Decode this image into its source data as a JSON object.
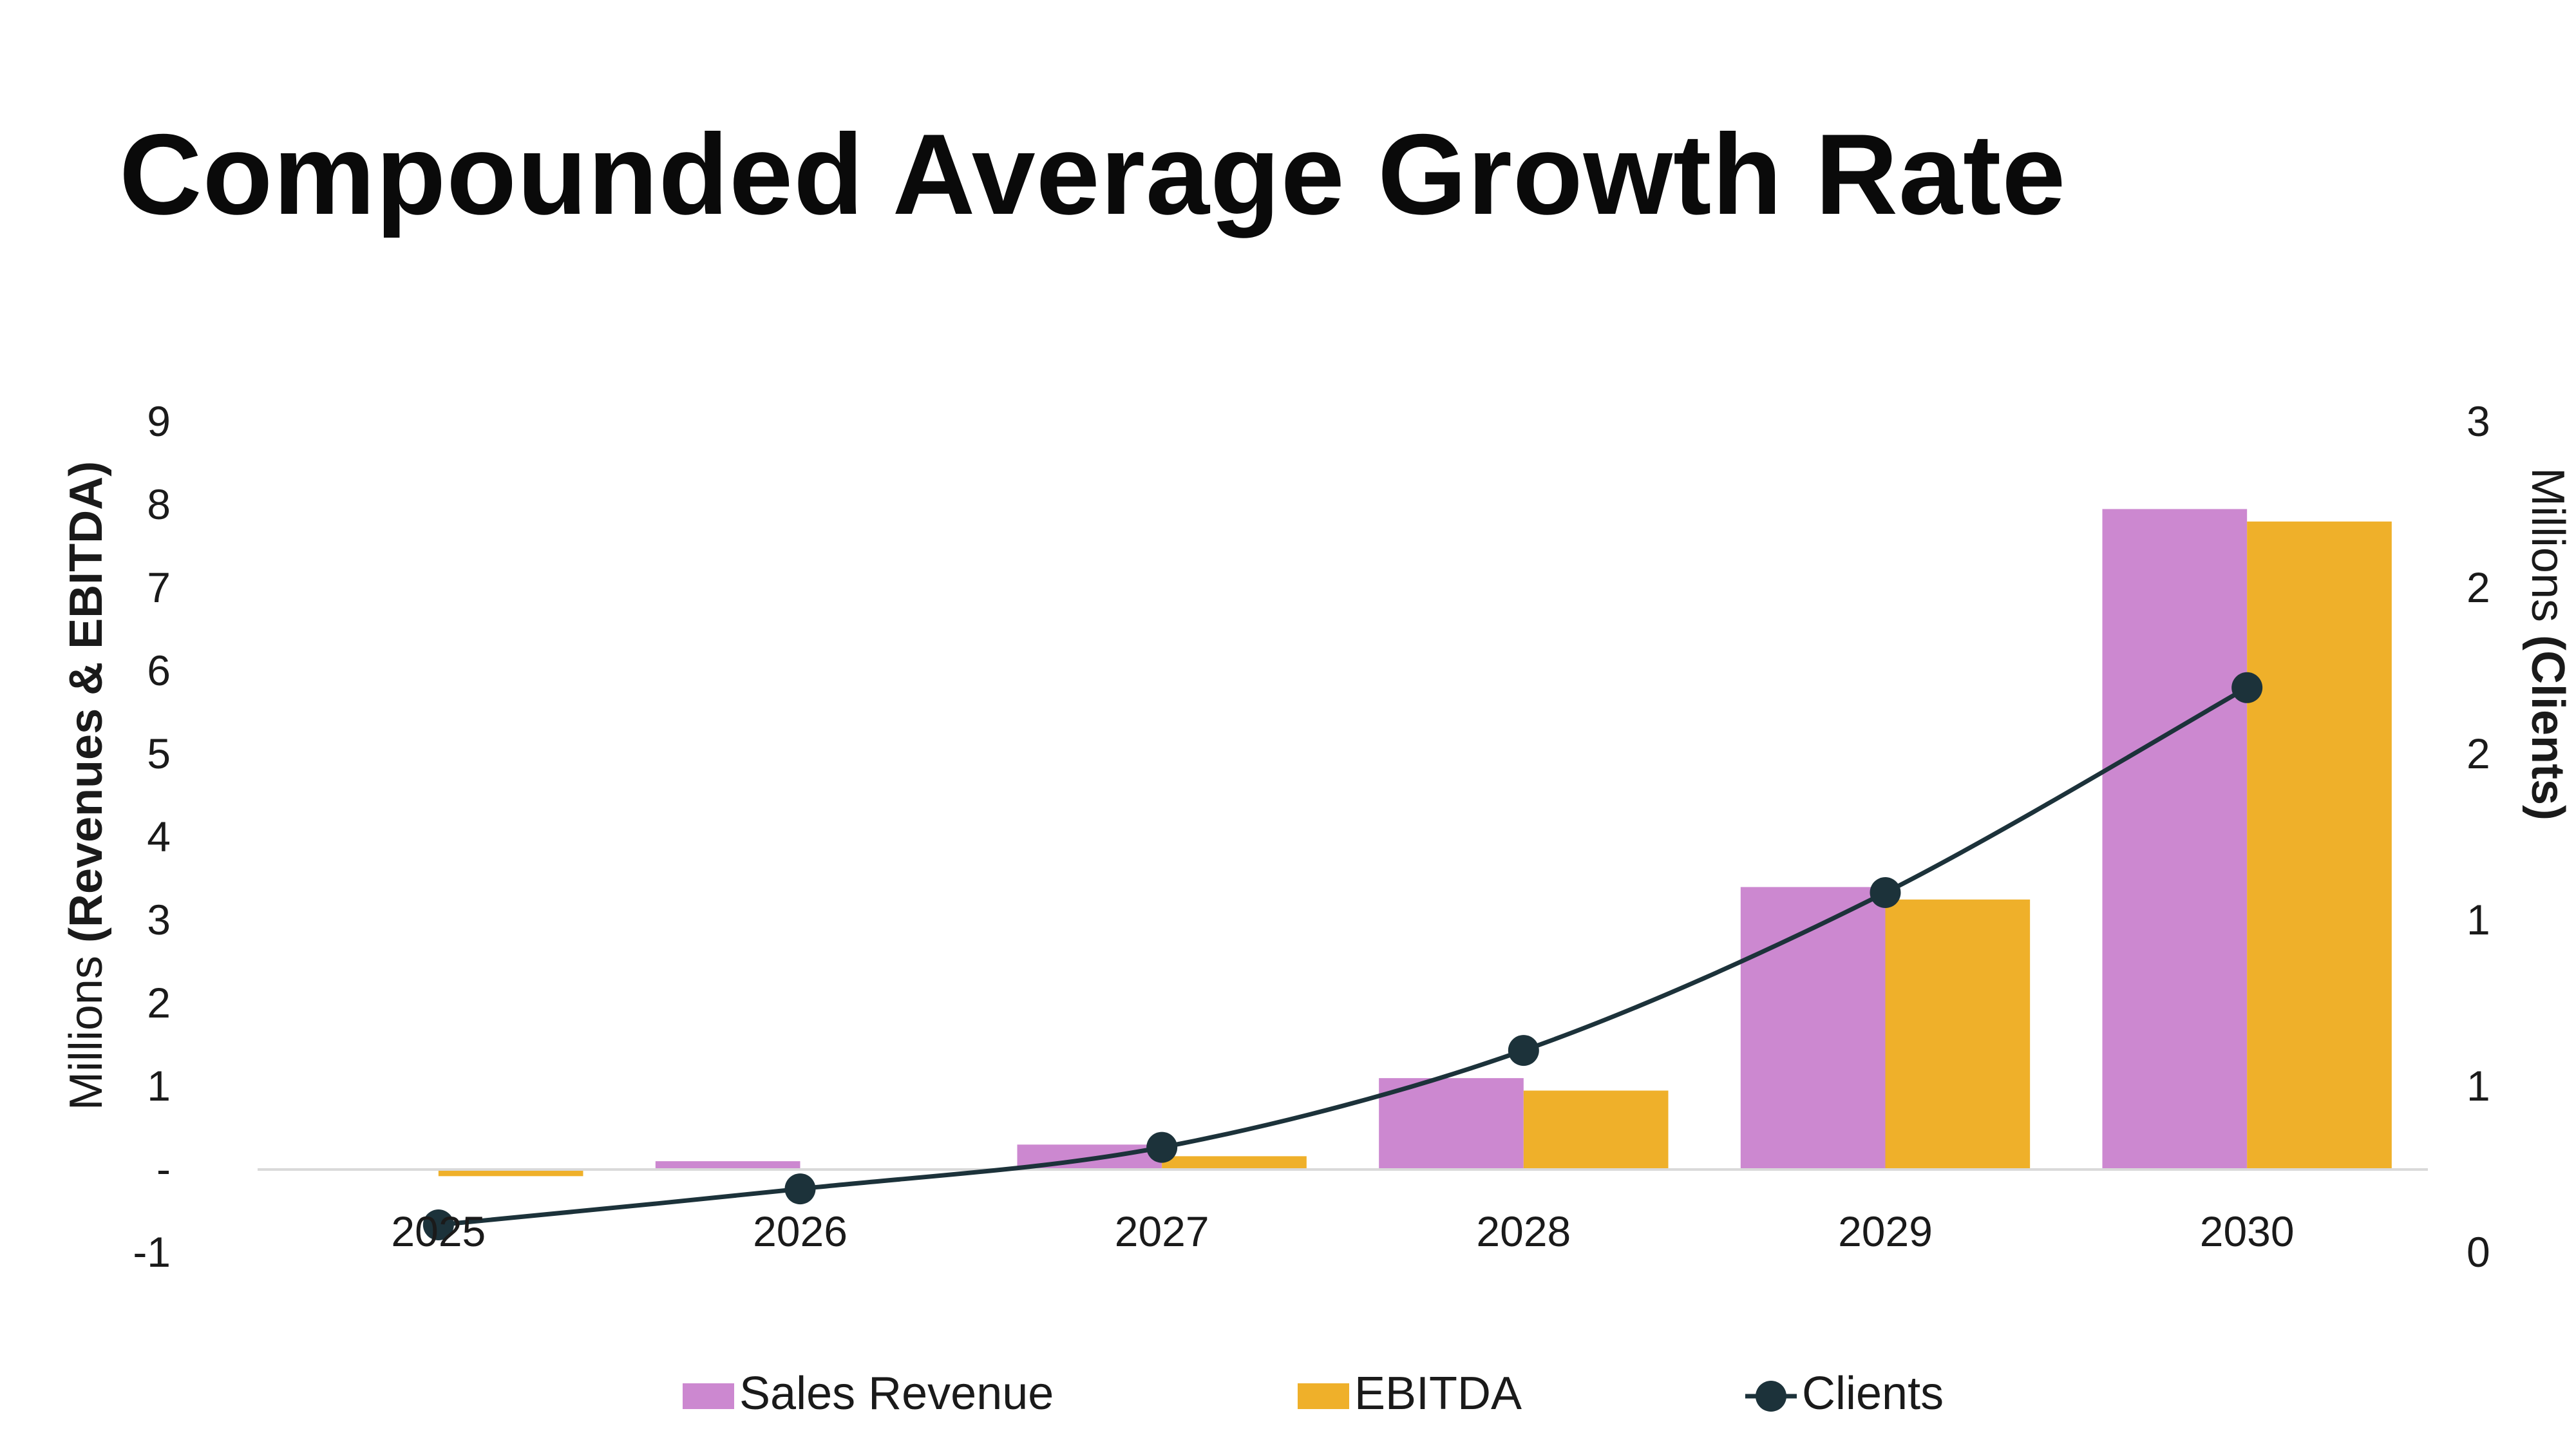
{
  "page": {
    "title": "Compounded Average Growth Rate"
  },
  "chart_data": {
    "type": "bar",
    "title": "Compounded Average Growth Rate",
    "categories": [
      "2025",
      "2026",
      "2027",
      "2028",
      "2029",
      "2030"
    ],
    "series": [
      {
        "name": "Sales Revenue",
        "type": "bar",
        "axis": "left",
        "color": "#CC88D0",
        "values": [
          0,
          0.1,
          0.3,
          1.1,
          3.4,
          7.95
        ]
      },
      {
        "name": "EBITDA",
        "type": "bar",
        "axis": "left",
        "color": "#EFB02A",
        "values": [
          -0.08,
          0,
          0.16,
          0.95,
          3.25,
          7.8
        ]
      },
      {
        "name": "Clients",
        "type": "line",
        "axis": "right",
        "color": "#1C323A",
        "values": [
          0.1,
          0.23,
          0.38,
          0.73,
          1.3,
          2.04
        ]
      }
    ],
    "ylabel_left": {
      "prefix": "Millions ",
      "emphasis": "(Revenues & EBITDA)"
    },
    "ylabel_right": {
      "prefix": "Millions ",
      "emphasis": "(Clients)"
    },
    "ylim_left": [
      -1,
      9
    ],
    "ylim_right": [
      0,
      3
    ],
    "yticks_left": [
      "-1",
      "-",
      "1",
      "2",
      "3",
      "4",
      "5",
      "6",
      "7",
      "8",
      "9"
    ],
    "yticks_right": [
      "0",
      "1",
      "1",
      "2",
      "2",
      "3"
    ],
    "grid": false,
    "legend_position": "bottom-center"
  }
}
